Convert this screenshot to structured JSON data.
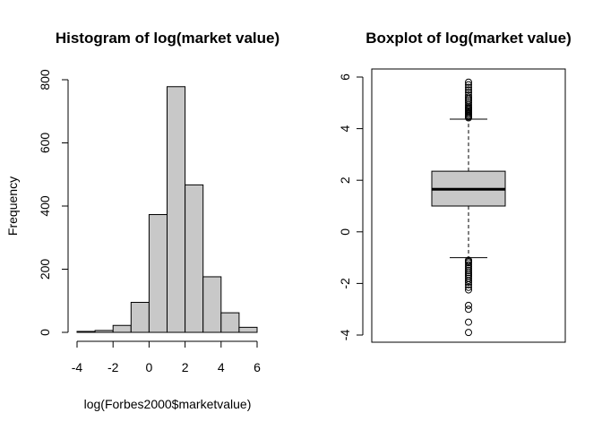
{
  "chart_data": [
    {
      "type": "histogram",
      "title": "Histogram of log(market value)",
      "xlabel": "log(Forbes2000$marketvalue)",
      "ylabel": "Frequency",
      "xlim": [
        -4,
        6
      ],
      "ylim": [
        0,
        800
      ],
      "xticks": [
        "-4",
        "-2",
        "0",
        "2",
        "4",
        "6"
      ],
      "yticks": [
        "0",
        "200",
        "400",
        "600",
        "800"
      ],
      "bins": [
        {
          "x0": -4,
          "x1": -3,
          "count": 3
        },
        {
          "x0": -3,
          "x1": -2,
          "count": 6
        },
        {
          "x0": -2,
          "x1": -1,
          "count": 22
        },
        {
          "x0": -1,
          "x1": 0,
          "count": 95
        },
        {
          "x0": 0,
          "x1": 1,
          "count": 373
        },
        {
          "x0": 1,
          "x1": 2,
          "count": 778
        },
        {
          "x0": 2,
          "x1": 3,
          "count": 467
        },
        {
          "x0": 3,
          "x1": 4,
          "count": 176
        },
        {
          "x0": 4,
          "x1": 5,
          "count": 62
        },
        {
          "x0": 5,
          "x1": 6,
          "count": 16
        }
      ],
      "bar_color": "#c8c8c8",
      "grid": false
    },
    {
      "type": "boxplot",
      "title": "Boxplot of log(market value)",
      "ylim": [
        -4,
        6
      ],
      "yticks": [
        "-4",
        "-2",
        "0",
        "2",
        "4",
        "6"
      ],
      "whisker_low": -1.0,
      "q1": 1.0,
      "median": 1.65,
      "q3": 2.35,
      "whisker_high": 4.37,
      "outliers_high": [
        4.42,
        4.46,
        4.5,
        4.55,
        4.6,
        4.65,
        4.7,
        4.75,
        4.8,
        4.85,
        4.92,
        5.0,
        5.08,
        5.15,
        5.22,
        5.3,
        5.4,
        5.5,
        5.6,
        5.7,
        5.8
      ],
      "outliers_low": [
        -1.1,
        -1.15,
        -1.2,
        -1.28,
        -1.35,
        -1.42,
        -1.5,
        -1.58,
        -1.65,
        -1.72,
        -1.8,
        -1.88,
        -1.95,
        -2.05,
        -2.15,
        -2.25,
        -2.85,
        -3.0,
        -3.5,
        -3.9
      ],
      "box_color": "#c8c8c8",
      "grid": false
    }
  ]
}
